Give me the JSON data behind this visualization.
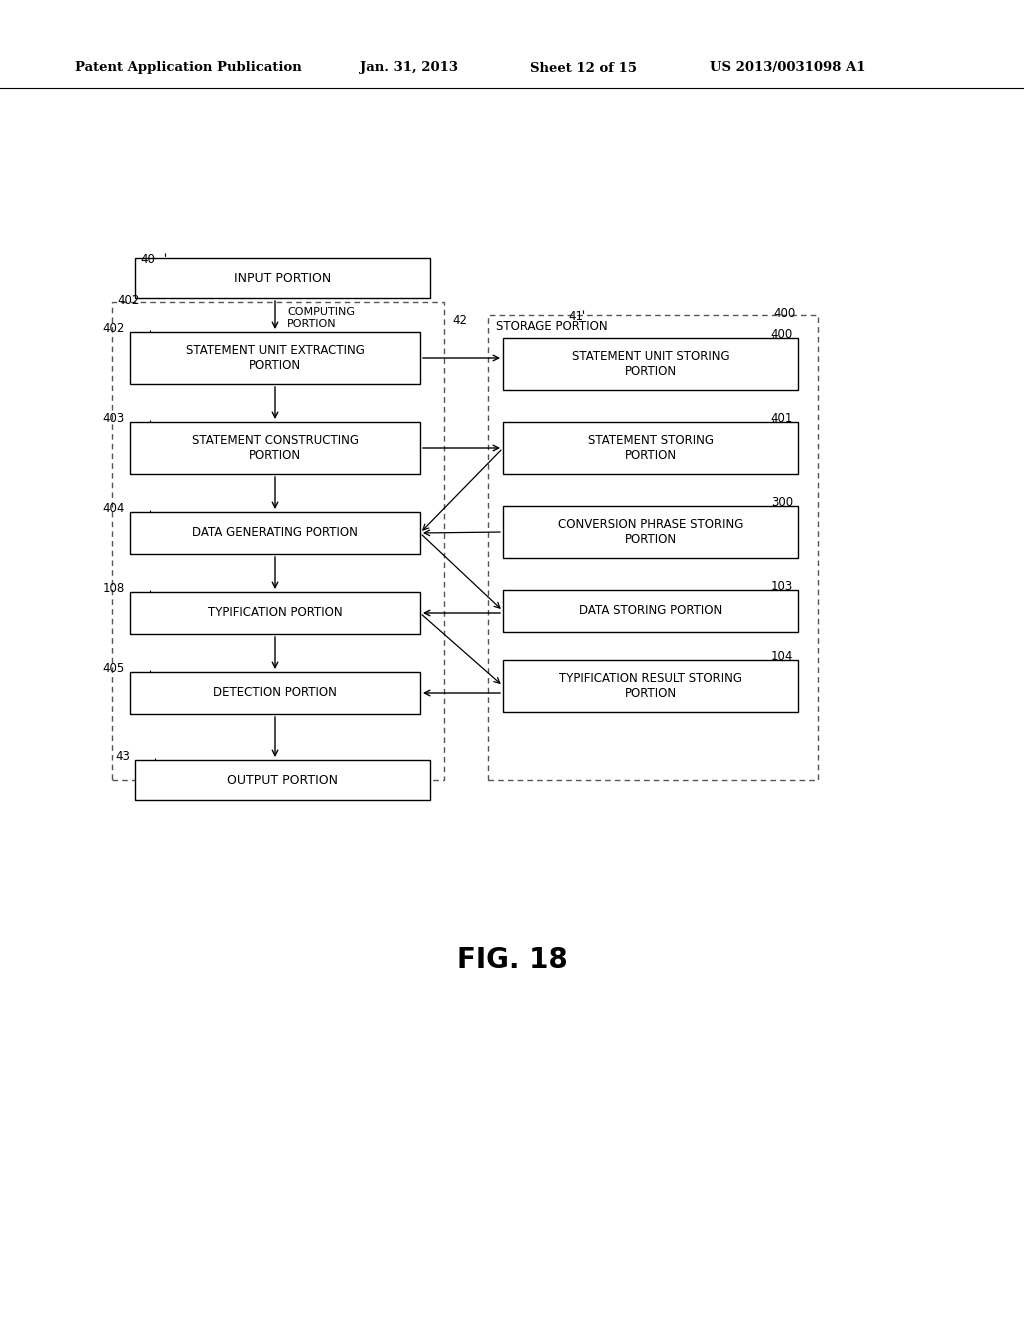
{
  "title_header": "Patent Application Publication",
  "title_date": "Jan. 31, 2013",
  "title_sheet": "Sheet 12 of 15",
  "title_patent": "US 2013/0031098 A1",
  "fig_label": "FIG. 18",
  "bg_color": "#ffffff"
}
